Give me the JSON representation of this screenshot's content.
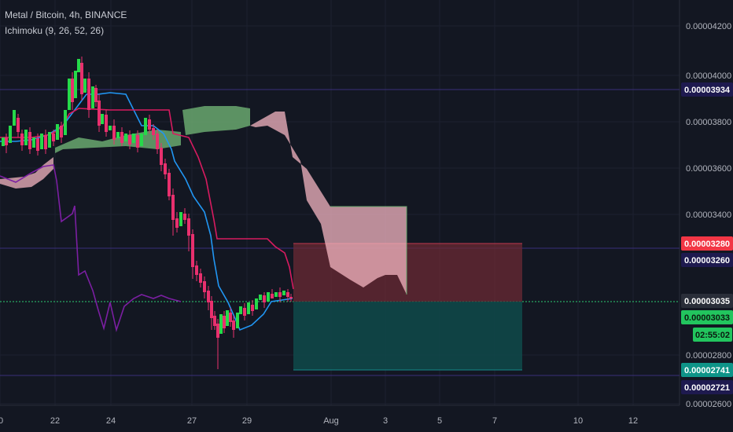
{
  "header": {
    "symbol_title": "Metal / Bitcoin, 4h, BINANCE",
    "indicator_label": "Ichimoku (9, 26, 52, 26)"
  },
  "colors": {
    "background": "#131722",
    "candle_up": "#26d94a",
    "candle_down": "#e8306e",
    "conversion_line": "#2196f3",
    "base_line": "#d81b60",
    "lagging_span": "#7b1fa2",
    "cloud_bullish": "#6aa86f",
    "cloud_bearish": "#f4b6c2",
    "stop_zone": "#6b2a34",
    "target_zone": "#0f4a4a"
  },
  "price_axis": {
    "tick_labels": [
      "0.00004200",
      "0.00004000",
      "0.00003800",
      "0.00003600",
      "0.00003400",
      "0.00003260",
      "0.00002800",
      "0.00002600"
    ],
    "badges": [
      {
        "name": "level-badge-upper",
        "label": "0.00003934",
        "bg": "#1e1a4f",
        "fg": "#ffffff"
      },
      {
        "name": "stop-badge",
        "label": "0.00003280",
        "bg": "#f23645",
        "fg": "#ffffff"
      },
      {
        "name": "level-badge-middle",
        "label": "0.00003260",
        "bg": "#1e1a4f",
        "fg": "#ffffff"
      },
      {
        "name": "entry-badge",
        "label": "0.00003035",
        "bg": "#2a2e39",
        "fg": "#ffffff"
      },
      {
        "name": "last-price-badge",
        "label": "0.00003033",
        "bg": "#22c55e",
        "fg": "#0b1a10"
      },
      {
        "name": "countdown-badge",
        "label": "02:55:02",
        "bg": "#22c55e",
        "fg": "#0b1a10"
      },
      {
        "name": "target-badge",
        "label": "0.00002741",
        "bg": "#0e9488",
        "fg": "#ffffff"
      },
      {
        "name": "level-badge-lower",
        "label": "0.00002721",
        "bg": "#1e1a4f",
        "fg": "#ffffff"
      }
    ]
  },
  "time_axis": {
    "labels": [
      "0",
      "22",
      "24",
      "27",
      "29",
      "Aug",
      "3",
      "5",
      "7",
      "10",
      "12"
    ]
  }
}
